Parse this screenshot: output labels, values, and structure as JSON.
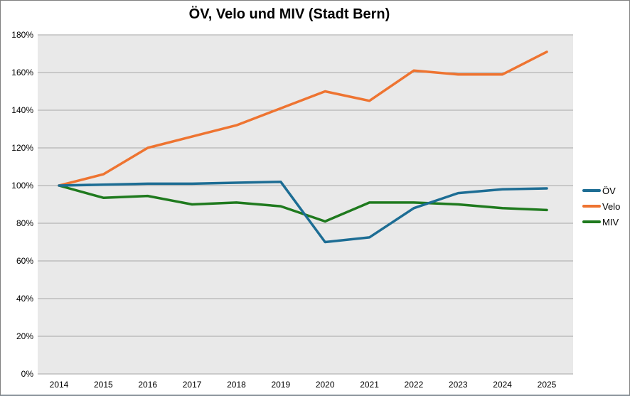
{
  "title": "ÖV, Velo und MIV (Stadt Bern)",
  "chart_data": {
    "type": "line",
    "title": "ÖV, Velo und MIV (Stadt Bern)",
    "x": [
      2014,
      2015,
      2016,
      2017,
      2018,
      2019,
      2020,
      2021,
      2022,
      2023,
      2024,
      2025
    ],
    "xtick_labels": [
      "2014",
      "2015",
      "2016",
      "2017",
      "2018",
      "2019",
      "2020",
      "2021",
      "2022",
      "2023",
      "2024",
      "2025"
    ],
    "series": [
      {
        "name": "ÖV",
        "color": "#1d6d94",
        "values": [
          100,
          100.5,
          101,
          101,
          101.5,
          102,
          70,
          72.5,
          88,
          96,
          98,
          98.5
        ]
      },
      {
        "name": "Velo",
        "color": "#ee7431",
        "values": [
          100,
          106,
          120,
          126,
          132,
          141,
          150,
          145,
          161,
          159,
          159,
          171
        ]
      },
      {
        "name": "MIV",
        "color": "#1f7a1e",
        "values": [
          100,
          93.5,
          94.5,
          90,
          91,
          89,
          81,
          91,
          91,
          90,
          88,
          87
        ]
      }
    ],
    "ylim": [
      0,
      180
    ],
    "ytick_step": 20,
    "ytick_labels": [
      "180%",
      "160%",
      "140%",
      "120%",
      "100%",
      "80%",
      "60%",
      "40%",
      "20%",
      "0%"
    ],
    "xlabel": "",
    "ylabel": "",
    "grid": true,
    "legend_position": "right",
    "plot_bg": "#e9e9e9",
    "grid_color": "#a6a6a6"
  }
}
